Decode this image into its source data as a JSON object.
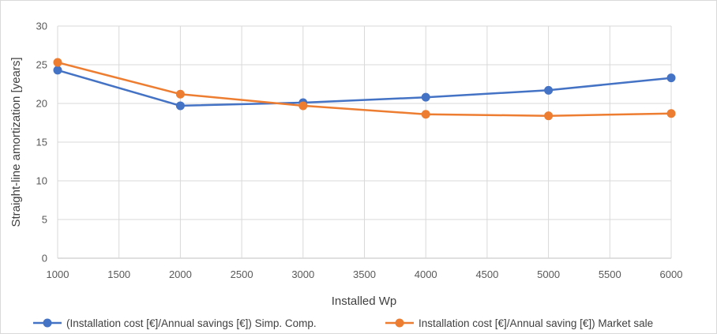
{
  "chart_data": {
    "type": "line",
    "title": "",
    "xlabel": "Installed Wp",
    "ylabel": "Straight-line amortization [years]",
    "xlim": [
      1000,
      6000
    ],
    "ylim": [
      0,
      30
    ],
    "x_ticks": [
      1000,
      1500,
      2000,
      2500,
      3000,
      3500,
      4000,
      4500,
      5000,
      5500,
      6000
    ],
    "y_ticks": [
      0,
      5,
      10,
      15,
      20,
      25,
      30
    ],
    "grid": true,
    "legend_position": "bottom",
    "x": [
      1000,
      2000,
      3000,
      4000,
      5000,
      6000
    ],
    "series": [
      {
        "name": "(Installation cost [€]/Annual savings [€]) Simp. Comp.",
        "color": "#4472c4",
        "values": [
          24.3,
          19.7,
          20.1,
          20.8,
          21.7,
          23.3
        ]
      },
      {
        "name": "Installation cost [€]/Annual saving [€]) Market sale",
        "color": "#ed7d31",
        "values": [
          25.3,
          21.2,
          19.7,
          18.6,
          18.4,
          18.7
        ]
      }
    ]
  }
}
